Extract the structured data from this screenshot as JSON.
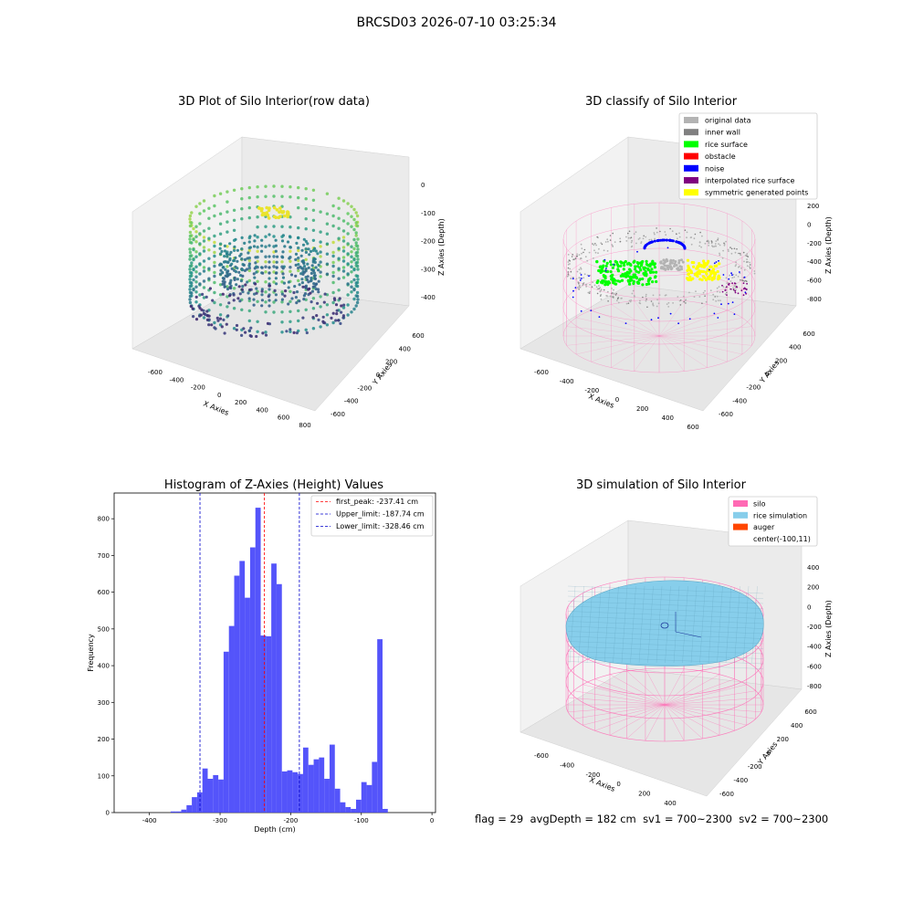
{
  "suptitle": "BRCSD03 2026-07-10 03:25:34",
  "footer": {
    "flag": "flag = 29",
    "avg_depth": "avgDepth = 182 cm",
    "sv1": "sv1 = 700~2300",
    "sv2": "sv2 = 700~2300"
  },
  "colors": {
    "hist_bar": "#4b4bfa",
    "peak_line": "#ff0000",
    "limit_line": "#0000cc",
    "pane": "#f2f2f2",
    "silo": "#ff69b4",
    "rice_simulation": "#87ceeb",
    "auger": "#ff4500"
  },
  "chart_data": [
    {
      "type": "scatter3d",
      "title": "3D Plot of Silo Interior(row data)",
      "xlabel": "X Axies",
      "ylabel": "Y Axies",
      "zlabel": "Z Axies (Depth)",
      "xticks": [
        "-600",
        "-400",
        "-200",
        "0",
        "200",
        "400",
        "600",
        "800"
      ],
      "yticks": [
        "-600",
        "-400",
        "-200",
        "0",
        "200",
        "400",
        "600"
      ],
      "zticks": [
        "0",
        "-100",
        "-200",
        "-300",
        "-400"
      ],
      "colormap": "viridis"
    },
    {
      "type": "scatter3d",
      "title": "3D classify of Silo Interior",
      "xlabel": "X Axies",
      "ylabel": "Y Axies",
      "zlabel": "Z Axies (Depth)",
      "xticks": [
        "-600",
        "-400",
        "-200",
        "0",
        "200",
        "400",
        "600"
      ],
      "yticks": [
        "-600",
        "-400",
        "-200",
        "0",
        "200",
        "400",
        "600"
      ],
      "zticks": [
        "200",
        "0",
        "-200",
        "-400",
        "-600",
        "-800"
      ],
      "legend": [
        {
          "label": "original data",
          "color": "#b3b3b3"
        },
        {
          "label": "inner wall",
          "color": "#808080"
        },
        {
          "label": "rice surface",
          "color": "#00ff00"
        },
        {
          "label": "obstacle",
          "color": "#ff0000"
        },
        {
          "label": "noise",
          "color": "#0000ff"
        },
        {
          "label": "interpolated rice surface",
          "color": "#800080"
        },
        {
          "label": "symmetric generated points",
          "color": "#ffff00"
        }
      ],
      "legend_position": "top-right"
    },
    {
      "type": "bar",
      "title": "Histogram of Z-Axies (Height) Values",
      "xlabel": "Depth (cm)",
      "ylabel": "Frequency",
      "xlim": [
        -450,
        5
      ],
      "ylim": [
        0,
        870
      ],
      "xticks": [
        -400,
        -300,
        -200,
        -100,
        0
      ],
      "yticks": [
        0,
        100,
        200,
        300,
        400,
        500,
        600,
        700,
        800
      ],
      "bin_width": 7.5,
      "bins": [
        {
          "x": -370,
          "y": 3
        },
        {
          "x": -362.5,
          "y": 3
        },
        {
          "x": -355,
          "y": 8
        },
        {
          "x": -347.5,
          "y": 20
        },
        {
          "x": -340,
          "y": 42
        },
        {
          "x": -332.5,
          "y": 55
        },
        {
          "x": -325,
          "y": 120
        },
        {
          "x": -317.5,
          "y": 92
        },
        {
          "x": -310,
          "y": 102
        },
        {
          "x": -302.5,
          "y": 90
        },
        {
          "x": -295,
          "y": 438
        },
        {
          "x": -287.5,
          "y": 508
        },
        {
          "x": -280,
          "y": 645
        },
        {
          "x": -272.5,
          "y": 685
        },
        {
          "x": -265,
          "y": 585
        },
        {
          "x": -257.5,
          "y": 722
        },
        {
          "x": -250,
          "y": 830
        },
        {
          "x": -242.5,
          "y": 482
        },
        {
          "x": -235,
          "y": 480
        },
        {
          "x": -227.5,
          "y": 678
        },
        {
          "x": -220,
          "y": 622
        },
        {
          "x": -212.5,
          "y": 112
        },
        {
          "x": -205,
          "y": 115
        },
        {
          "x": -197.5,
          "y": 110
        },
        {
          "x": -190,
          "y": 105
        },
        {
          "x": -182.5,
          "y": 177
        },
        {
          "x": -175,
          "y": 130
        },
        {
          "x": -167.5,
          "y": 145
        },
        {
          "x": -160,
          "y": 150
        },
        {
          "x": -152.5,
          "y": 92
        },
        {
          "x": -145,
          "y": 185
        },
        {
          "x": -137.5,
          "y": 65
        },
        {
          "x": -130,
          "y": 28
        },
        {
          "x": -122.5,
          "y": 15
        },
        {
          "x": -115,
          "y": 10
        },
        {
          "x": -107.5,
          "y": 35
        },
        {
          "x": -100,
          "y": 83
        },
        {
          "x": -92.5,
          "y": 75
        },
        {
          "x": -85,
          "y": 138
        },
        {
          "x": -77.5,
          "y": 472
        },
        {
          "x": -70,
          "y": 10
        }
      ],
      "vlines": [
        {
          "label": "first_peak: -237.41 cm",
          "x": -237.41,
          "style": "peak"
        },
        {
          "label": "Upper_limit: -187.74 cm",
          "x": -187.74,
          "style": "limit"
        },
        {
          "label": "Lower_limit: -328.46 cm",
          "x": -328.46,
          "style": "limit"
        }
      ],
      "legend_position": "top-right"
    },
    {
      "type": "surface3d",
      "title": "3D simulation of Silo Interior",
      "xlabel": "X Axies",
      "ylabel": "Y Axies",
      "zlabel": "Z Axies (Depth)",
      "xticks": [
        "-600",
        "-400",
        "-200",
        "0",
        "200",
        "400"
      ],
      "yticks": [
        "-600",
        "-400",
        "-200",
        "0",
        "200",
        "400",
        "600"
      ],
      "zticks": [
        "400",
        "200",
        "0",
        "-200",
        "-400",
        "-600",
        "-800"
      ],
      "legend": [
        {
          "label": "silo",
          "color": "#ff69b4"
        },
        {
          "label": "rice simulation",
          "color": "#87ceeb"
        },
        {
          "label": "auger",
          "color": "#ff4500"
        },
        {
          "label": "center(-100,11)",
          "color": ""
        }
      ],
      "legend_position": "top-right"
    }
  ]
}
